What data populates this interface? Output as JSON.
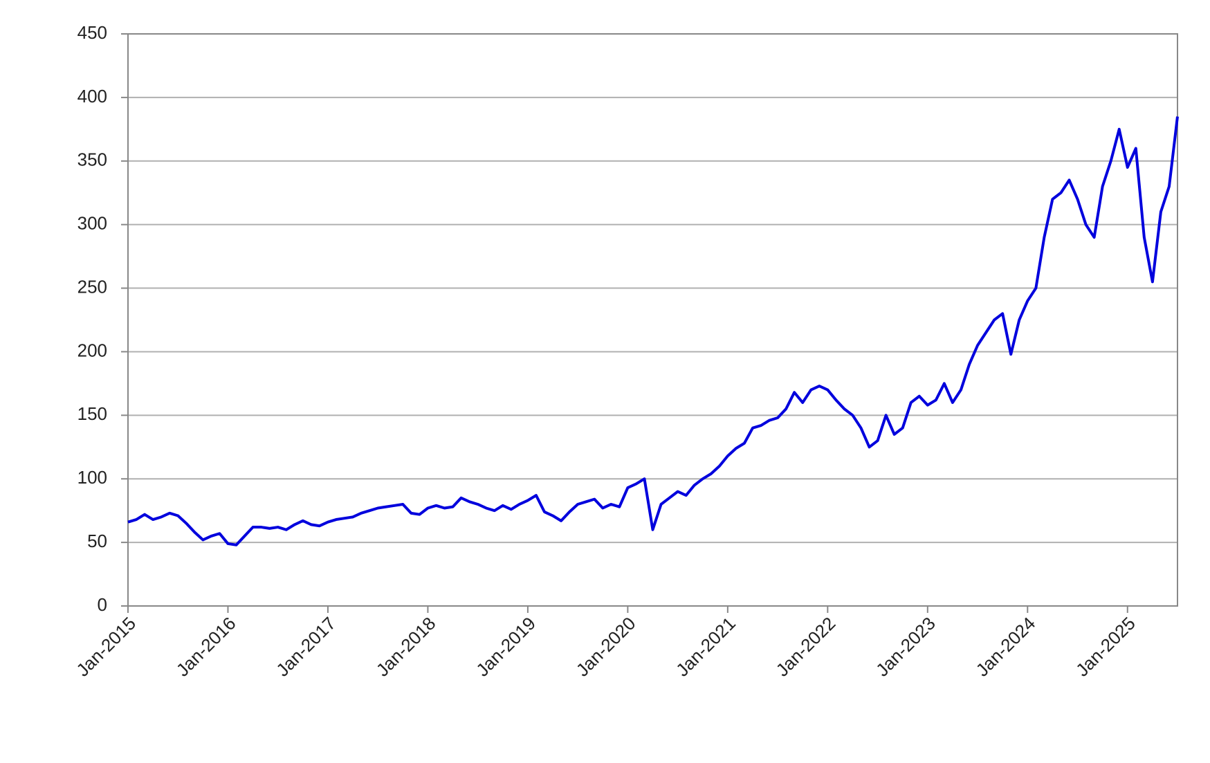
{
  "chart_data": {
    "type": "line",
    "x": [
      "2015-01",
      "2015-02",
      "2015-03",
      "2015-04",
      "2015-05",
      "2015-06",
      "2015-07",
      "2015-08",
      "2015-09",
      "2015-10",
      "2015-11",
      "2015-12",
      "2016-01",
      "2016-02",
      "2016-03",
      "2016-04",
      "2016-05",
      "2016-06",
      "2016-07",
      "2016-08",
      "2016-09",
      "2016-10",
      "2016-11",
      "2016-12",
      "2017-01",
      "2017-02",
      "2017-03",
      "2017-04",
      "2017-05",
      "2017-06",
      "2017-07",
      "2017-08",
      "2017-09",
      "2017-10",
      "2017-11",
      "2017-12",
      "2018-01",
      "2018-02",
      "2018-03",
      "2018-04",
      "2018-05",
      "2018-06",
      "2018-07",
      "2018-08",
      "2018-09",
      "2018-10",
      "2018-11",
      "2018-12",
      "2019-01",
      "2019-02",
      "2019-03",
      "2019-04",
      "2019-05",
      "2019-06",
      "2019-07",
      "2019-08",
      "2019-09",
      "2019-10",
      "2019-11",
      "2019-12",
      "2020-01",
      "2020-02",
      "2020-03",
      "2020-04",
      "2020-05",
      "2020-06",
      "2020-07",
      "2020-08",
      "2020-09",
      "2020-10",
      "2020-11",
      "2020-12",
      "2021-01",
      "2021-02",
      "2021-03",
      "2021-04",
      "2021-05",
      "2021-06",
      "2021-07",
      "2021-08",
      "2021-09",
      "2021-10",
      "2021-11",
      "2021-12",
      "2022-01",
      "2022-02",
      "2022-03",
      "2022-04",
      "2022-05",
      "2022-06",
      "2022-07",
      "2022-08",
      "2022-09",
      "2022-10",
      "2022-11",
      "2022-12",
      "2023-01",
      "2023-02",
      "2023-03",
      "2023-04",
      "2023-05",
      "2023-06",
      "2023-07",
      "2023-08",
      "2023-09",
      "2023-10",
      "2023-11",
      "2023-12",
      "2024-01",
      "2024-02",
      "2024-03",
      "2024-04",
      "2024-05",
      "2024-06",
      "2024-07",
      "2024-08",
      "2024-09",
      "2024-10",
      "2024-11",
      "2024-12",
      "2025-01",
      "2025-02",
      "2025-03",
      "2025-04",
      "2025-05",
      "2025-06",
      "2025-07"
    ],
    "series": [
      {
        "color": "#0000dd",
        "values": [
          66,
          68,
          72,
          68,
          70,
          73,
          71,
          65,
          58,
          52,
          55,
          57,
          49,
          48,
          55,
          62,
          62,
          61,
          62,
          60,
          64,
          67,
          64,
          63,
          66,
          68,
          69,
          70,
          73,
          75,
          77,
          78,
          79,
          80,
          73,
          72,
          77,
          79,
          77,
          78,
          85,
          82,
          80,
          77,
          75,
          79,
          76,
          80,
          83,
          87,
          74,
          71,
          67,
          74,
          80,
          82,
          84,
          77,
          80,
          78,
          93,
          96,
          100,
          60,
          80,
          85,
          90,
          87,
          95,
          100,
          104,
          110,
          118,
          124,
          128,
          140,
          142,
          146,
          148,
          155,
          168,
          160,
          170,
          173,
          170,
          162,
          155,
          150,
          140,
          125,
          130,
          150,
          135,
          140,
          160,
          165,
          158,
          162,
          175,
          160,
          170,
          190,
          205,
          215,
          225,
          230,
          198,
          225,
          240,
          250,
          290,
          320,
          325,
          335,
          320,
          300,
          290,
          330,
          350,
          375,
          345,
          360,
          290,
          255,
          310,
          330,
          385
        ]
      }
    ],
    "xlim": [
      "2015-01",
      "2025-07"
    ],
    "xticks": [
      {
        "value": "2015-01",
        "label": "Jan-2015"
      },
      {
        "value": "2016-01",
        "label": "Jan-2016"
      },
      {
        "value": "2017-01",
        "label": "Jan-2017"
      },
      {
        "value": "2018-01",
        "label": "Jan-2018"
      },
      {
        "value": "2019-01",
        "label": "Jan-2019"
      },
      {
        "value": "2020-01",
        "label": "Jan-2020"
      },
      {
        "value": "2021-01",
        "label": "Jan-2021"
      },
      {
        "value": "2022-01",
        "label": "Jan-2022"
      },
      {
        "value": "2023-01",
        "label": "Jan-2023"
      },
      {
        "value": "2024-01",
        "label": "Jan-2024"
      },
      {
        "value": "2025-01",
        "label": "Jan-2025"
      }
    ],
    "ylim": [
      0,
      450
    ],
    "yticks": [
      0,
      50,
      100,
      150,
      200,
      250,
      300,
      350,
      400,
      450
    ],
    "grid": true
  }
}
